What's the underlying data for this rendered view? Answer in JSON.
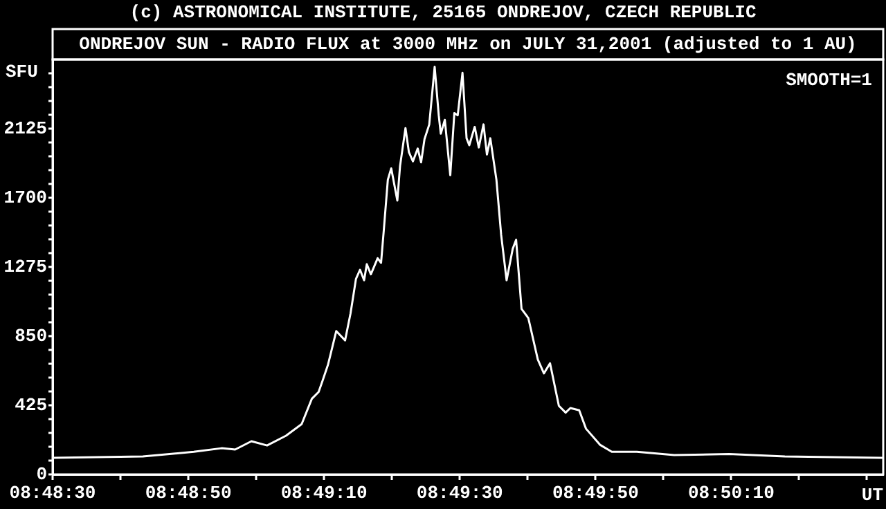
{
  "chart_data": {
    "type": "line",
    "title": "ONDREJOV SUN - RADIO FLUX at 3000 MHz on JULY 31,2001 (adjusted to 1 AU)",
    "annotations": [
      "(c) ASTRONOMICAL INSTITUTE, 25165 ONDREJOV, CZECH REPUBLIC",
      "SMOOTH=1"
    ],
    "xlabel": "UT",
    "ylabel": "SFU",
    "color": "#ffffff",
    "marker": "none",
    "line_style": "solid",
    "legend": false,
    "x": [
      "2001-07-31T08:48:30",
      "2001-07-31T08:48:43.3",
      "2001-07-31T08:48:50.8",
      "2001-07-31T08:48:54.9",
      "2001-07-31T08:48:56.9",
      "2001-07-31T08:48:59.3",
      "2001-07-31T08:49:01.6",
      "2001-07-31T08:49:04.4",
      "2001-07-31T08:49:06.7",
      "2001-07-31T08:49:08.2",
      "2001-07-31T08:49:09.2",
      "2001-07-31T08:49:09.8",
      "2001-07-31T08:49:10.6",
      "2001-07-31T08:49:11.8",
      "2001-07-31T08:49:13.1",
      "2001-07-31T08:49:13.9",
      "2001-07-31T08:49:14.7",
      "2001-07-31T08:49:15.3",
      "2001-07-31T08:49:15.9",
      "2001-07-31T08:49:16.3",
      "2001-07-31T08:49:16.9",
      "2001-07-31T08:49:17.9",
      "2001-07-31T08:49:18.4",
      "2001-07-31T08:49:18.8",
      "2001-07-31T08:49:19.4",
      "2001-07-31T08:49:19.9",
      "2001-07-31T08:49:20.8",
      "2001-07-31T08:49:21.2",
      "2001-07-31T08:49:22.0",
      "2001-07-31T08:49:22.5",
      "2001-07-31T08:49:23.1",
      "2001-07-31T08:49:23.8",
      "2001-07-31T08:49:24.3",
      "2001-07-31T08:49:24.8",
      "2001-07-31T08:49:25.5",
      "2001-07-31T08:49:26.3",
      "2001-07-31T08:49:26.9",
      "2001-07-31T08:49:27.2",
      "2001-07-31T08:49:27.8",
      "2001-07-31T08:49:28.6",
      "2001-07-31T08:49:29.2",
      "2001-07-31T08:49:29.7",
      "2001-07-31T08:49:30.4",
      "2001-07-31T08:49:31.0",
      "2001-07-31T08:49:31.4",
      "2001-07-31T08:49:32.2",
      "2001-07-31T08:49:32.8",
      "2001-07-31T08:49:33.5",
      "2001-07-31T08:49:34.0",
      "2001-07-31T08:49:34.5",
      "2001-07-31T08:49:35.4",
      "2001-07-31T08:49:36.1",
      "2001-07-31T08:49:36.9",
      "2001-07-31T08:49:37.8",
      "2001-07-31T08:49:38.3",
      "2001-07-31T08:49:39.1",
      "2001-07-31T08:49:40.1",
      "2001-07-31T08:49:41.5",
      "2001-07-31T08:49:42.4",
      "2001-07-31T08:49:43.3",
      "2001-07-31T08:49:44.6",
      "2001-07-31T08:49:45.6",
      "2001-07-31T08:49:46.3",
      "2001-07-31T08:49:47.6",
      "2001-07-31T08:49:48.6",
      "2001-07-31T08:49:50.7",
      "2001-07-31T08:49:52.4",
      "2001-07-31T08:49:56.1",
      "2001-07-31T08:50:01.6",
      "2001-07-31T08:50:09.7",
      "2001-07-31T08:50:17.9",
      "2001-07-31T08:50:32.4"
    ],
    "values": [
      102,
      110,
      139,
      161,
      153,
      204,
      178,
      238,
      309,
      465,
      507,
      578,
      677,
      881,
      824,
      989,
      1201,
      1258,
      1193,
      1292,
      1230,
      1329,
      1300,
      1499,
      1811,
      1881,
      1683,
      1896,
      2128,
      1981,
      1924,
      2003,
      1918,
      2060,
      2150,
      2505,
      2207,
      2094,
      2179,
      1839,
      2221,
      2207,
      2468,
      2066,
      2023,
      2136,
      2009,
      2151,
      1966,
      2066,
      1811,
      1471,
      1193,
      1386,
      1442,
      1017,
      961,
      706,
      621,
      683,
      422,
      380,
      408,
      394,
      281,
      181,
      139,
      139,
      119,
      125,
      110,
      102
    ],
    "xlim": [
      "2001-07-31T08:48:30",
      "2001-07-31T08:50:32.4"
    ],
    "xticks": [
      {
        "value": "2001-07-31T08:48:30",
        "label": "08:48:30"
      },
      {
        "value": "2001-07-31T08:48:40",
        "label": null
      },
      {
        "value": "2001-07-31T08:48:50",
        "label": "08:48:50"
      },
      {
        "value": "2001-07-31T08:49:00",
        "label": null
      },
      {
        "value": "2001-07-31T08:49:10",
        "label": "08:49:10"
      },
      {
        "value": "2001-07-31T08:49:20",
        "label": null
      },
      {
        "value": "2001-07-31T08:49:30",
        "label": "08:49:30"
      },
      {
        "value": "2001-07-31T08:49:40",
        "label": null
      },
      {
        "value": "2001-07-31T08:49:50",
        "label": "08:49:50"
      },
      {
        "value": "2001-07-31T08:50:00",
        "label": null
      },
      {
        "value": "2001-07-31T08:50:10",
        "label": "08:50:10"
      },
      {
        "value": "2001-07-31T08:50:20",
        "label": null
      },
      {
        "value": "2001-07-31T08:50:30",
        "label": null
      }
    ],
    "ylim": [
      0,
      2550
    ],
    "yticks": [
      0,
      {
        "value": 85,
        "label": null
      },
      {
        "value": 170,
        "label": null
      },
      {
        "value": 255,
        "label": null
      },
      {
        "value": 340,
        "label": null
      },
      425,
      {
        "value": 510,
        "label": null
      },
      {
        "value": 595,
        "label": null
      },
      {
        "value": 680,
        "label": null
      },
      {
        "value": 765,
        "label": null
      },
      850,
      {
        "value": 935,
        "label": null
      },
      {
        "value": 1020,
        "label": null
      },
      {
        "value": 1105,
        "label": null
      },
      {
        "value": 1190,
        "label": null
      },
      1275,
      {
        "value": 1360,
        "label": null
      },
      {
        "value": 1445,
        "label": null
      },
      {
        "value": 1530,
        "label": null
      },
      {
        "value": 1615,
        "label": null
      },
      1700,
      {
        "value": 1785,
        "label": null
      },
      {
        "value": 1870,
        "label": null
      },
      {
        "value": 1955,
        "label": null
      },
      {
        "value": 2040,
        "label": null
      },
      2125,
      {
        "value": 2210,
        "label": null
      },
      {
        "value": 2295,
        "label": null
      },
      {
        "value": 2380,
        "label": null
      },
      {
        "value": 2465,
        "label": null
      }
    ]
  }
}
